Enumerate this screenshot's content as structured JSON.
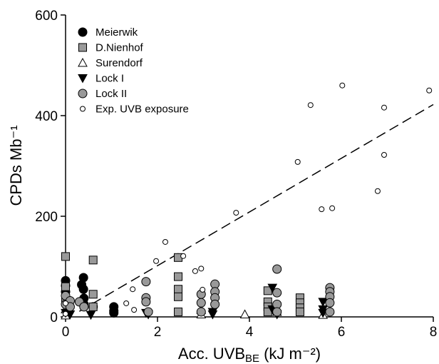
{
  "chart_data": {
    "type": "scatter",
    "xlabel": {
      "text": "Acc. UVB",
      "sub": "BE",
      "unit": "(kJ m⁻²)"
    },
    "ylabel": "CPDs Mb⁻¹",
    "xlim": [
      0,
      8
    ],
    "ylim": [
      0,
      600
    ],
    "xticks": [
      0,
      2,
      4,
      6,
      8
    ],
    "yticks": [
      0,
      200,
      400,
      600
    ],
    "legend": "upper left",
    "series": [
      {
        "name": "Meierwik",
        "marker": "circle",
        "color": "#000000",
        "x": [
          0,
          0,
          0,
          0.39,
          0.35,
          0.39,
          0.4,
          0.4,
          0.6,
          1.05,
          1.05,
          1.05
        ],
        "y": [
          72,
          62,
          50,
          78,
          64,
          55,
          37,
          25,
          20,
          20,
          12,
          8
        ]
      },
      {
        "name": "D.Nienhof",
        "marker": "square",
        "color": "#999999",
        "x": [
          0,
          0,
          0,
          0.6,
          0.6,
          0.6,
          2.45,
          2.45,
          2.45,
          2.45,
          2.45,
          4.4,
          4.4,
          4.4,
          4.4,
          5.1,
          5.1,
          5.1,
          5.1
        ],
        "y": [
          120,
          60,
          30,
          113,
          45,
          20,
          118,
          80,
          55,
          40,
          10,
          52,
          30,
          20,
          10,
          38,
          28,
          18,
          10
        ]
      },
      {
        "name": "Surendorf",
        "marker": "triangle-up",
        "color": "#ffffff",
        "x": [
          0,
          0,
          2.95,
          2.95,
          3.9,
          4.6,
          5.6
        ],
        "y": [
          15,
          3,
          14,
          5,
          5,
          10,
          4
        ]
      },
      {
        "name": "Lock I",
        "marker": "triangle-down",
        "color": "#000000",
        "x": [
          0,
          0.1,
          0.55,
          1.75,
          1.8,
          3.2,
          3.2,
          4.5,
          4.5,
          4.6,
          5.6,
          5.6,
          5.6
        ],
        "y": [
          8,
          5,
          4,
          8,
          5,
          10,
          5,
          58,
          15,
          5,
          30,
          15,
          8
        ]
      },
      {
        "name": "Lock II",
        "marker": "circle",
        "color": "#999999",
        "x": [
          0,
          0,
          0.1,
          0.1,
          0.3,
          0.4,
          1.75,
          1.75,
          1.75,
          1.8,
          2.95,
          2.95,
          2.95,
          3.25,
          3.25,
          3.25,
          3.25,
          4.6,
          4.6,
          4.6,
          4.6,
          5.75,
          5.75,
          5.75,
          5.75,
          5.75
        ],
        "y": [
          42,
          25,
          32,
          20,
          30,
          20,
          70,
          38,
          30,
          10,
          45,
          28,
          10,
          65,
          50,
          38,
          25,
          95,
          48,
          25,
          10,
          58,
          50,
          40,
          28,
          10
        ]
      },
      {
        "name": "Exp. UVB exposure",
        "marker": "small-circle",
        "color": "#ffffff",
        "x": [
          0,
          0,
          1.46,
          1.49,
          1.32,
          1.97,
          2.17,
          2.56,
          2.82,
          2.95,
          2.98,
          3.71,
          5.05,
          5.33,
          5.57,
          5.8,
          6.02,
          6.79,
          6.93,
          6.93,
          7.91
        ],
        "y": [
          27,
          6,
          55,
          14,
          27,
          111,
          149,
          121,
          91,
          96,
          54,
          207,
          308,
          421,
          214,
          216,
          460,
          250,
          322,
          416,
          450
        ]
      }
    ],
    "trend_line": {
      "x": [
        0.3,
        8
      ],
      "y": [
        11,
        422
      ],
      "style": "dashed",
      "color": "#000000"
    }
  }
}
